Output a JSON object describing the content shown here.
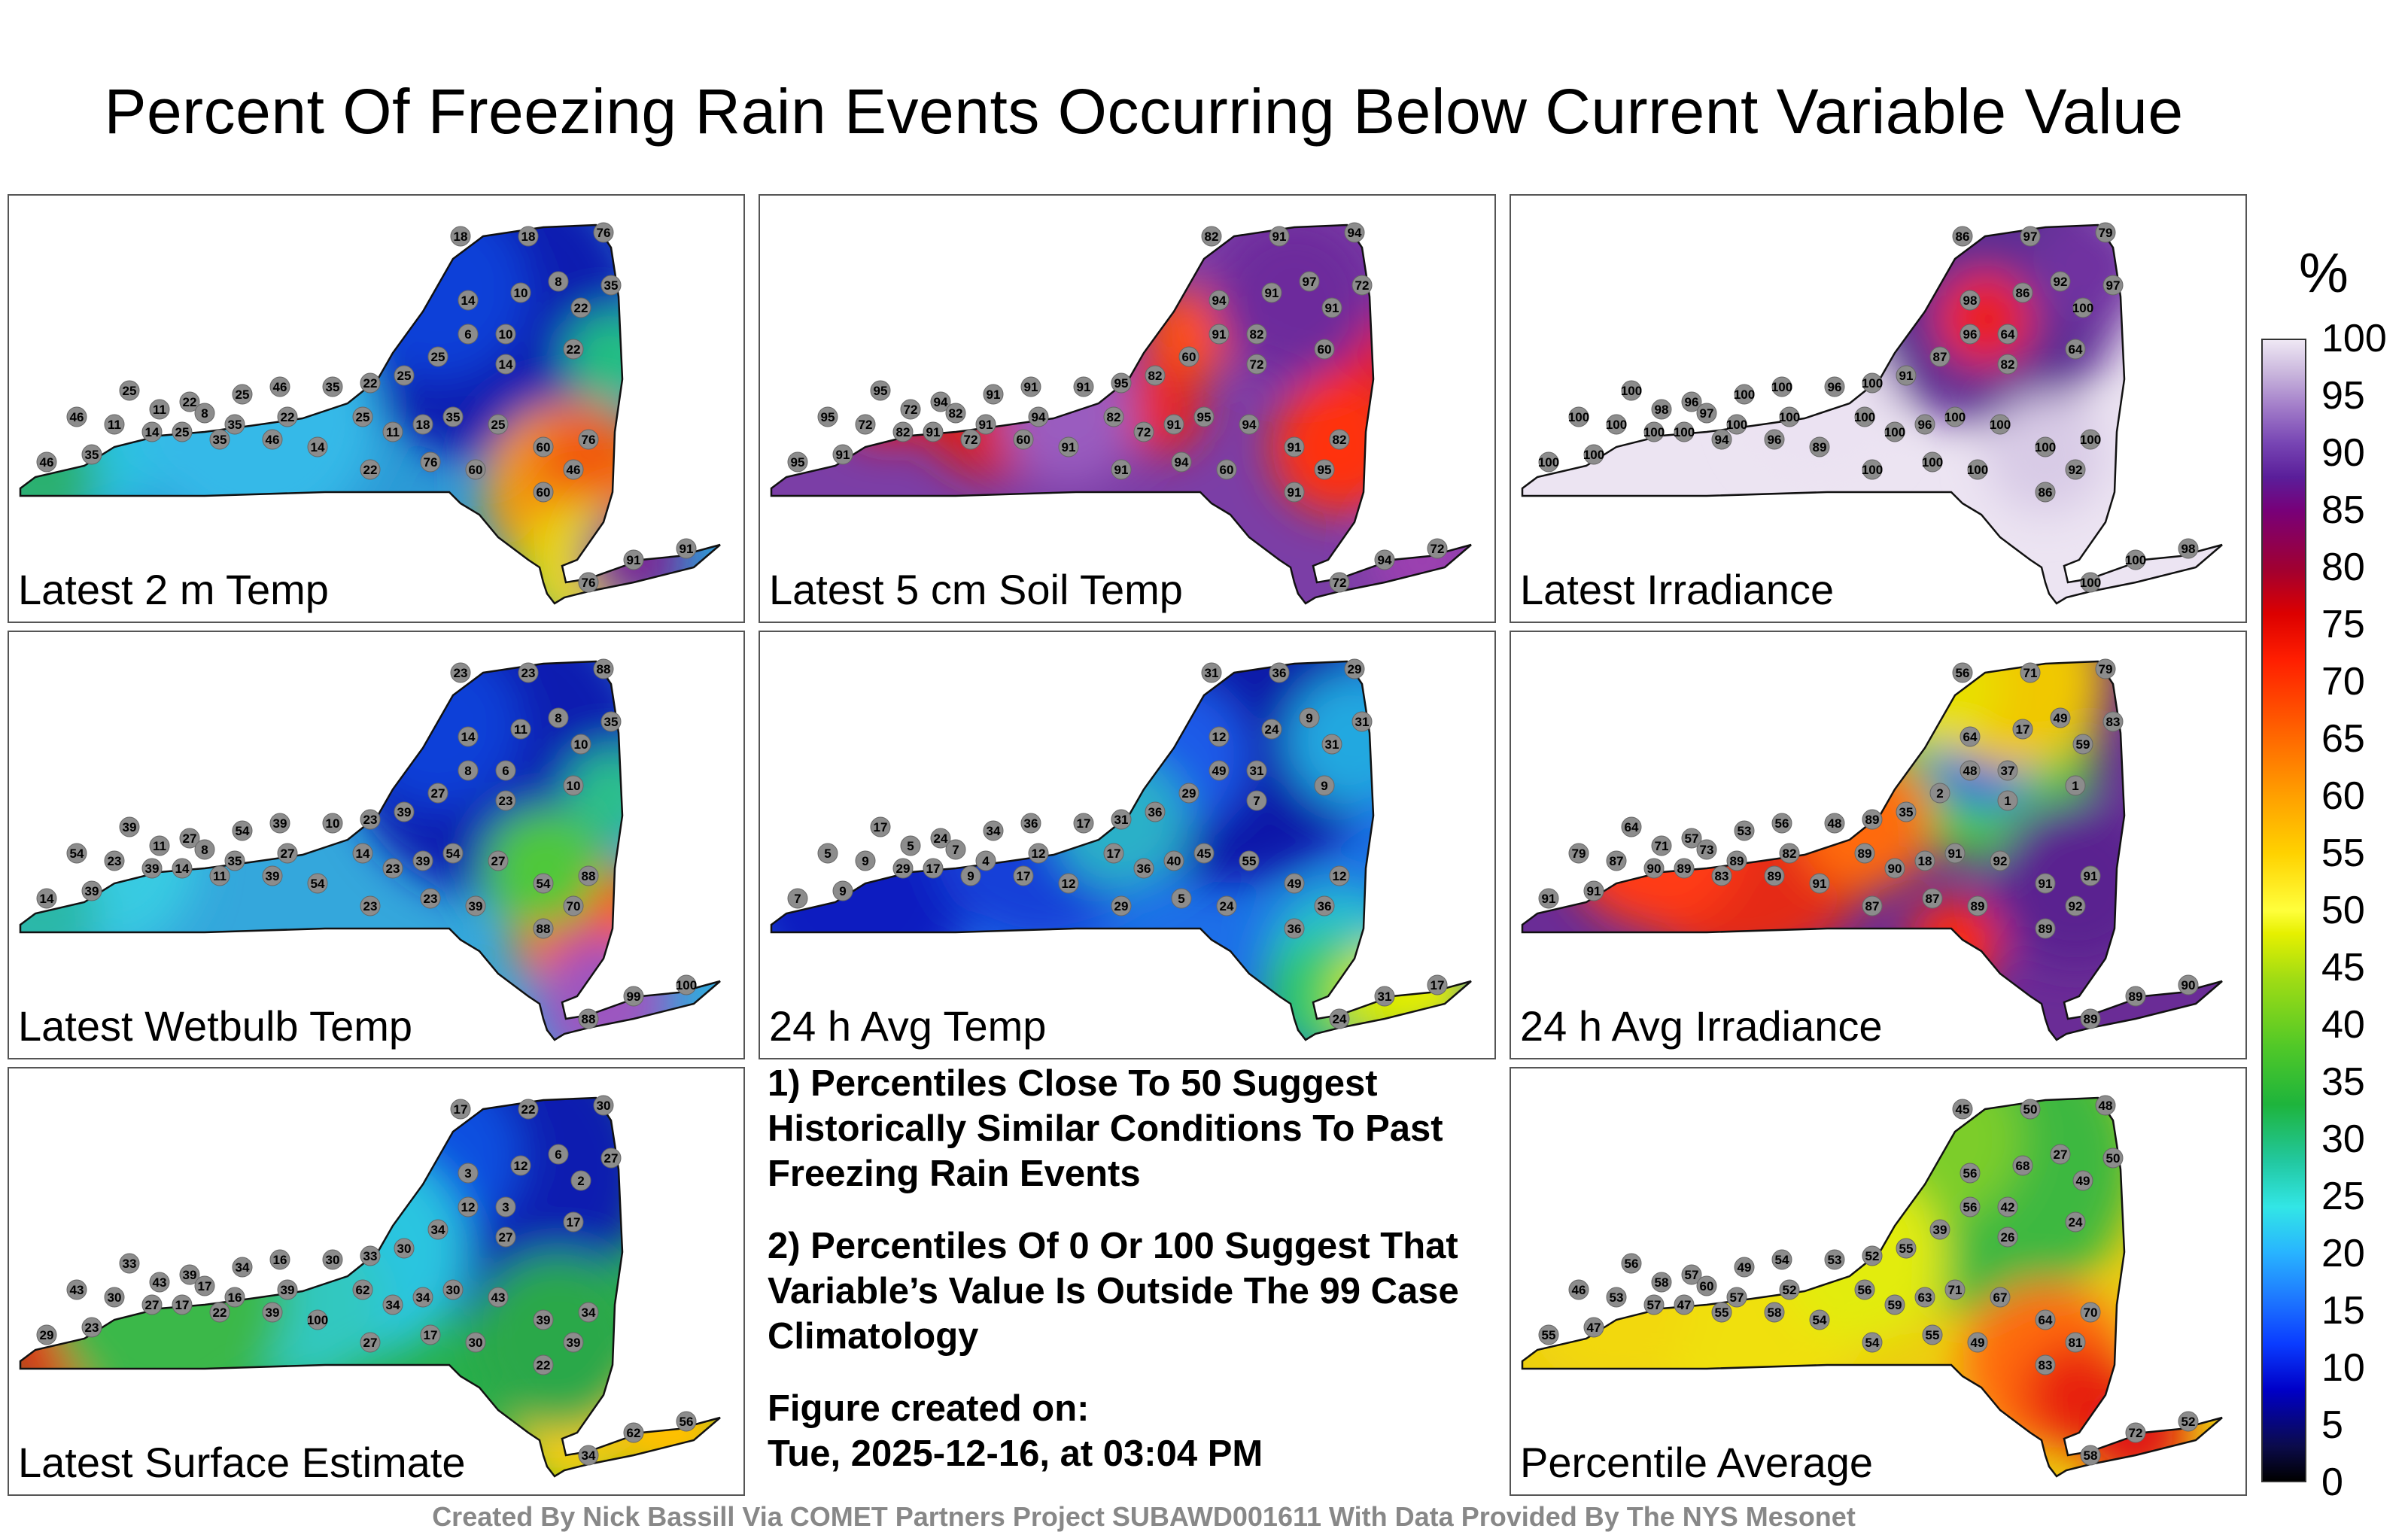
{
  "title": "Percent Of Freezing Rain Events Occurring Below Current Variable Value",
  "colorbar": {
    "unit": "%",
    "ticks": [
      "100",
      "95",
      "90",
      "85",
      "80",
      "75",
      "70",
      "65",
      "60",
      "55",
      "50",
      "45",
      "40",
      "35",
      "30",
      "25",
      "20",
      "15",
      "10",
      "5",
      "0"
    ]
  },
  "panels": [
    {
      "label": "Latest 2 m Temp",
      "theme": "cold_blue",
      "stations": [
        "18",
        "18",
        "76",
        "35",
        "10",
        "8",
        "14",
        "22",
        "6",
        "10",
        "22",
        "14",
        "25",
        "25",
        "22",
        "35",
        "46",
        "25",
        "22",
        "25",
        "11",
        "8",
        "35",
        "22",
        "46",
        "11",
        "14",
        "25",
        "35",
        "46",
        "14",
        "25",
        "11",
        "18",
        "35",
        "25",
        "60",
        "76",
        "46",
        "60",
        "91",
        "91",
        "76",
        "60",
        "76",
        "22",
        "35",
        "46"
      ]
    },
    {
      "label": "Latest 5 cm Soil Temp",
      "theme": "purple_red",
      "stations": [
        "82",
        "91",
        "94",
        "72",
        "91",
        "97",
        "94",
        "91",
        "91",
        "82",
        "60",
        "72",
        "60",
        "82",
        "95",
        "91",
        "91",
        "91",
        "94",
        "95",
        "72",
        "82",
        "91",
        "94",
        "95",
        "72",
        "82",
        "91",
        "72",
        "60",
        "91",
        "82",
        "72",
        "91",
        "95",
        "94",
        "91",
        "82",
        "95",
        "91",
        "94",
        "72",
        "72",
        "60",
        "94",
        "91",
        "91",
        "95"
      ]
    },
    {
      "label": "Latest Irradiance",
      "theme": "irradiance",
      "stations": [
        "86",
        "97",
        "79",
        "97",
        "86",
        "92",
        "98",
        "100",
        "96",
        "64",
        "64",
        "82",
        "87",
        "91",
        "100",
        "96",
        "100",
        "100",
        "96",
        "100",
        "98",
        "97",
        "100",
        "100",
        "100",
        "100",
        "100",
        "100",
        "94",
        "96",
        "89",
        "100",
        "100",
        "96",
        "100",
        "100",
        "100",
        "100",
        "92",
        "86",
        "100",
        "98",
        "100",
        "100",
        "100",
        "100",
        "100",
        "100"
      ]
    },
    {
      "label": "Latest Wetbulb Temp",
      "theme": "cold_blue_b",
      "stations": [
        "23",
        "23",
        "88",
        "35",
        "11",
        "8",
        "14",
        "10",
        "8",
        "6",
        "10",
        "23",
        "27",
        "39",
        "23",
        "10",
        "39",
        "54",
        "27",
        "39",
        "11",
        "8",
        "35",
        "27",
        "54",
        "23",
        "39",
        "14",
        "11",
        "39",
        "54",
        "14",
        "23",
        "39",
        "54",
        "27",
        "54",
        "88",
        "70",
        "88",
        "99",
        "100",
        "88",
        "39",
        "23",
        "23",
        "39",
        "14"
      ]
    },
    {
      "label": "24 h Avg Temp",
      "theme": "avg_temp",
      "stations": [
        "31",
        "36",
        "29",
        "31",
        "24",
        "9",
        "12",
        "31",
        "49",
        "31",
        "9",
        "7",
        "29",
        "36",
        "31",
        "17",
        "36",
        "34",
        "24",
        "17",
        "5",
        "7",
        "4",
        "12",
        "5",
        "9",
        "29",
        "17",
        "9",
        "17",
        "12",
        "17",
        "36",
        "40",
        "45",
        "55",
        "49",
        "12",
        "36",
        "36",
        "31",
        "17",
        "24",
        "24",
        "5",
        "29",
        "9",
        "7"
      ]
    },
    {
      "label": "24 h Avg Irradiance",
      "theme": "avg_irr",
      "stations": [
        "56",
        "71",
        "79",
        "83",
        "17",
        "49",
        "64",
        "59",
        "48",
        "37",
        "1",
        "1",
        "2",
        "35",
        "89",
        "48",
        "56",
        "53",
        "57",
        "64",
        "71",
        "73",
        "89",
        "82",
        "79",
        "87",
        "90",
        "89",
        "83",
        "89",
        "91",
        "89",
        "90",
        "18",
        "91",
        "92",
        "91",
        "91",
        "92",
        "89",
        "89",
        "90",
        "89",
        "89",
        "87",
        "87",
        "91",
        "91"
      ]
    },
    {
      "label": "Latest Surface Estimate",
      "theme": "surface",
      "stations": [
        "17",
        "22",
        "30",
        "27",
        "12",
        "6",
        "3",
        "2",
        "12",
        "3",
        "17",
        "27",
        "34",
        "30",
        "33",
        "30",
        "16",
        "34",
        "39",
        "33",
        "43",
        "17",
        "16",
        "39",
        "43",
        "30",
        "27",
        "17",
        "22",
        "39",
        "100",
        "62",
        "34",
        "34",
        "30",
        "43",
        "39",
        "34",
        "39",
        "22",
        "62",
        "56",
        "34",
        "30",
        "17",
        "27",
        "23",
        "29"
      ]
    },
    {
      "label": "Percentile Average",
      "theme": "average",
      "stations": [
        "45",
        "50",
        "48",
        "50",
        "68",
        "27",
        "56",
        "49",
        "56",
        "42",
        "24",
        "26",
        "39",
        "55",
        "52",
        "53",
        "54",
        "49",
        "57",
        "56",
        "58",
        "60",
        "57",
        "52",
        "46",
        "53",
        "57",
        "47",
        "55",
        "58",
        "54",
        "56",
        "59",
        "63",
        "71",
        "67",
        "64",
        "70",
        "81",
        "83",
        "72",
        "52",
        "58",
        "49",
        "55",
        "54",
        "47",
        "55"
      ]
    }
  ],
  "notes": [
    "1) Percentiles Close To 50 Suggest Historically Similar Conditions To Past Freezing Rain Events",
    "2) Percentiles Of 0 Or 100 Suggest That Variable’s Value Is Outside The 99 Case Climatology"
  ],
  "figure_created_label": "Figure created on:",
  "figure_created_date": "Tue, 2025-12-16, at 03:04 PM",
  "footer": "Created By Nick Bassill Via COMET Partners Project SUBAWD001611 With Data Provided By The NYS Mesonet"
}
